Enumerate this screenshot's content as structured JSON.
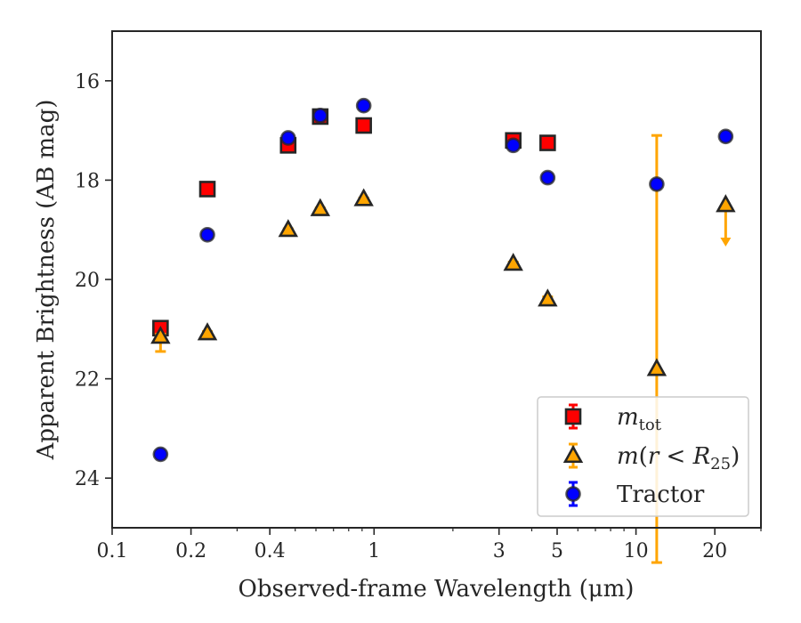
{
  "chart_data": {
    "type": "scatter",
    "title": "",
    "xlabel": "Observed-frame Wavelength (μm)",
    "ylabel": "Apparent Brightness (AB mag)",
    "xscale": "log",
    "xlim": [
      0.1,
      30
    ],
    "ylim": [
      25,
      15
    ],
    "y_inverted": true,
    "x_ticks": [
      {
        "value": 0.1,
        "label": "0.1"
      },
      {
        "value": 0.2,
        "label": "0.2"
      },
      {
        "value": 0.4,
        "label": "0.4"
      },
      {
        "value": 1,
        "label": "1"
      },
      {
        "value": 3,
        "label": "3"
      },
      {
        "value": 5,
        "label": "5"
      },
      {
        "value": 10,
        "label": "10"
      },
      {
        "value": 20,
        "label": "20"
      }
    ],
    "x_minor_ticks": [
      0.3,
      0.5,
      0.6,
      0.7,
      0.8,
      0.9,
      2,
      4,
      6,
      7,
      8,
      9,
      30
    ],
    "y_ticks": [
      {
        "value": 16,
        "label": "16"
      },
      {
        "value": 18,
        "label": "18"
      },
      {
        "value": 20,
        "label": "20"
      },
      {
        "value": 22,
        "label": "22"
      },
      {
        "value": 24,
        "label": "24"
      }
    ],
    "grid": false,
    "legend_position": "bottom-right",
    "series": [
      {
        "name": "m_tot",
        "marker": "square",
        "color": "#ff0000",
        "edge_color": "#262626",
        "errorbar_color": "#ff0000",
        "points": [
          {
            "x": 0.153,
            "y": 20.98,
            "err": 0.05
          },
          {
            "x": 0.231,
            "y": 18.18,
            "err": 0.03
          },
          {
            "x": 0.47,
            "y": 17.3,
            "err": 0.02
          },
          {
            "x": 0.623,
            "y": 16.72,
            "err": 0.02
          },
          {
            "x": 0.913,
            "y": 16.9,
            "err": 0.02
          },
          {
            "x": 3.4,
            "y": 17.2,
            "err": 0.02
          },
          {
            "x": 4.6,
            "y": 17.25,
            "err": 0.02
          }
        ]
      },
      {
        "name": "m(r<R25)",
        "marker": "triangle",
        "color": "#ffa500",
        "edge_color": "#262626",
        "errorbar_color": "#ffa500",
        "points": [
          {
            "x": 0.153,
            "y": 21.15,
            "err_low": 0.3,
            "err_high": 0.05
          },
          {
            "x": 0.231,
            "y": 21.08,
            "err": 0.03
          },
          {
            "x": 0.47,
            "y": 19.0,
            "err": 0.02
          },
          {
            "x": 0.623,
            "y": 18.58,
            "err": 0.02
          },
          {
            "x": 0.913,
            "y": 18.38,
            "err": 0.02
          },
          {
            "x": 3.4,
            "y": 19.68,
            "err": 0.03
          },
          {
            "x": 4.6,
            "y": 20.4,
            "err": 0.05
          },
          {
            "x": 12.0,
            "y": 21.8,
            "err_low": 3.9,
            "err_high": 4.7
          },
          {
            "x": 22.0,
            "y": 18.5,
            "upper_limit": true,
            "arrow_to": 19.3
          }
        ]
      },
      {
        "name": "Tractor",
        "marker": "circle",
        "color": "#0000ff",
        "edge_color": "#262626",
        "errorbar_color": "#0000ff",
        "points": [
          {
            "x": 0.153,
            "y": 23.52,
            "err": 0.05
          },
          {
            "x": 0.231,
            "y": 19.1,
            "err": 0.03
          },
          {
            "x": 0.47,
            "y": 17.15,
            "err": 0.02
          },
          {
            "x": 0.623,
            "y": 16.7,
            "err": 0.02
          },
          {
            "x": 0.913,
            "y": 16.5,
            "err": 0.02
          },
          {
            "x": 3.4,
            "y": 17.3,
            "err": 0.02
          },
          {
            "x": 4.6,
            "y": 17.95,
            "err": 0.02
          },
          {
            "x": 12.0,
            "y": 18.08,
            "err": 0.03
          },
          {
            "x": 22.0,
            "y": 17.12,
            "err": 0.03
          }
        ]
      }
    ]
  }
}
